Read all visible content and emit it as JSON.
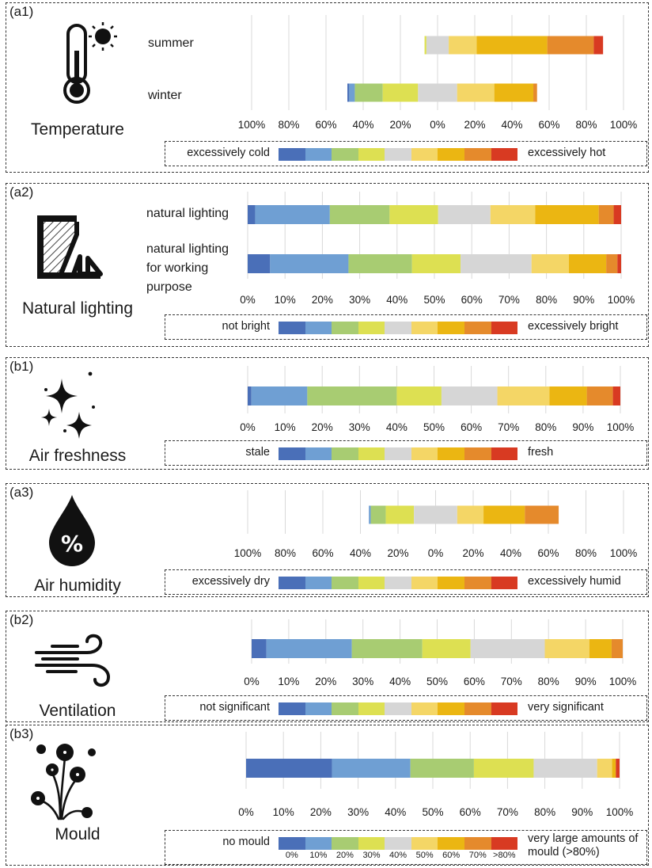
{
  "colors": [
    "#4a6fb8",
    "#6f9fd3",
    "#a8cc72",
    "#dde052",
    "#d6d6d6",
    "#f4d666",
    "#ebb612",
    "#e58a2c",
    "#d83a22"
  ],
  "scale_labels": [
    "0%",
    "10%",
    "20%",
    "30%",
    "40%",
    "50%",
    "60%",
    "70%",
    ">80%"
  ],
  "panels": [
    {
      "tag": "(a1)",
      "title": "Temperature",
      "icon": "thermometer-sun-icon",
      "legend": {
        "left": "excessively cold",
        "right": "excessively hot"
      },
      "rows": [
        {
          "label": "summer"
        },
        {
          "label": "winter"
        }
      ]
    },
    {
      "tag": "(a2)",
      "title": "Natural lighting",
      "icon": "window-light-icon",
      "legend": {
        "left": "not bright",
        "right": "excessively bright"
      },
      "rows": [
        {
          "label": "natural lighting"
        },
        {
          "label": "natural lighting for working purpose"
        }
      ]
    },
    {
      "tag": "(b1)",
      "title": "Air freshness",
      "icon": "sparkles-icon",
      "legend": {
        "left": "stale",
        "right": "fresh"
      }
    },
    {
      "tag": "(a3)",
      "title": "Air humidity",
      "icon": "humidity-drop-icon",
      "legend": {
        "left": "excessively dry",
        "right": "excessively humid"
      }
    },
    {
      "tag": "(b2)",
      "title": "Ventilation",
      "icon": "wind-icon",
      "legend": {
        "left": "not significant",
        "right": "very significant"
      }
    },
    {
      "tag": "(b3)",
      "title": "Mould",
      "icon": "mould-icon",
      "legend": {
        "left": "no mould",
        "right": "very large amounts of mould (>80%)"
      }
    }
  ],
  "chart_data": [
    {
      "type": "bar",
      "orientation": "horizontal",
      "stacked": "diverging",
      "categories": [
        "summer",
        "winter"
      ],
      "tick_labels": [
        "100%",
        "80%",
        "60%",
        "40%",
        "20%",
        "0%",
        "20%",
        "40%",
        "60%",
        "80%",
        "100%"
      ],
      "xlim": [
        -100,
        100
      ],
      "grid": true,
      "series": [
        {
          "name": "excessively cold",
          "values": [
            0,
            1
          ]
        },
        {
          "name": "",
          "values": [
            0,
            3
          ]
        },
        {
          "name": "",
          "values": [
            0,
            15
          ]
        },
        {
          "name": "",
          "values": [
            1,
            19
          ]
        },
        {
          "name": "",
          "values": [
            12,
            21
          ]
        },
        {
          "name": "",
          "values": [
            15,
            20
          ]
        },
        {
          "name": "",
          "values": [
            38,
            21
          ]
        },
        {
          "name": "",
          "values": [
            25,
            2
          ]
        },
        {
          "name": "excessively hot",
          "values": [
            5,
            0
          ]
        }
      ]
    },
    {
      "type": "bar",
      "orientation": "horizontal",
      "stacked": "100%",
      "categories": [
        "natural lighting",
        "natural lighting for working purpose"
      ],
      "tick_labels": [
        "0%",
        "10%",
        "20%",
        "30%",
        "40%",
        "50%",
        "60%",
        "70%",
        "80%",
        "90%",
        "100%"
      ],
      "xlim": [
        0,
        100
      ],
      "grid": true,
      "series": [
        {
          "name": "not bright",
          "values": [
            2,
            6
          ]
        },
        {
          "name": "",
          "values": [
            20,
            21
          ]
        },
        {
          "name": "",
          "values": [
            16,
            17
          ]
        },
        {
          "name": "",
          "values": [
            13,
            13
          ]
        },
        {
          "name": "",
          "values": [
            14,
            19
          ]
        },
        {
          "name": "",
          "values": [
            12,
            10
          ]
        },
        {
          "name": "",
          "values": [
            17,
            10
          ]
        },
        {
          "name": "",
          "values": [
            4,
            3
          ]
        },
        {
          "name": "excessively bright",
          "values": [
            2,
            1
          ]
        }
      ]
    },
    {
      "type": "bar",
      "orientation": "horizontal",
      "stacked": "100%",
      "categories": [
        "Air freshness"
      ],
      "tick_labels": [
        "0%",
        "10%",
        "20%",
        "30%",
        "40%",
        "50%",
        "60%",
        "70%",
        "80%",
        "90%",
        "100%"
      ],
      "xlim": [
        0,
        100
      ],
      "grid": true,
      "series": [
        {
          "name": "stale",
          "values": [
            1
          ]
        },
        {
          "name": "",
          "values": [
            15
          ]
        },
        {
          "name": "",
          "values": [
            24
          ]
        },
        {
          "name": "",
          "values": [
            12
          ]
        },
        {
          "name": "",
          "values": [
            15
          ]
        },
        {
          "name": "",
          "values": [
            14
          ]
        },
        {
          "name": "",
          "values": [
            10
          ]
        },
        {
          "name": "",
          "values": [
            7
          ]
        },
        {
          "name": "fresh",
          "values": [
            2
          ]
        }
      ]
    },
    {
      "type": "bar",
      "orientation": "horizontal",
      "stacked": "diverging",
      "categories": [
        "Air humidity"
      ],
      "tick_labels": [
        "100%",
        "80%",
        "60%",
        "40%",
        "20%",
        "0%",
        "20%",
        "40%",
        "60%",
        "80%",
        "100%"
      ],
      "xlim": [
        -100,
        100
      ],
      "grid": true,
      "series": [
        {
          "name": "excessively dry",
          "values": [
            0
          ]
        },
        {
          "name": "",
          "values": [
            1
          ]
        },
        {
          "name": "",
          "values": [
            8
          ]
        },
        {
          "name": "",
          "values": [
            15
          ]
        },
        {
          "name": "",
          "values": [
            23
          ]
        },
        {
          "name": "",
          "values": [
            14
          ]
        },
        {
          "name": "",
          "values": [
            22
          ]
        },
        {
          "name": "",
          "values": [
            18
          ]
        },
        {
          "name": "excessively humid",
          "values": [
            0
          ]
        }
      ]
    },
    {
      "type": "bar",
      "orientation": "horizontal",
      "stacked": "100%",
      "categories": [
        "Ventilation"
      ],
      "tick_labels": [
        "0%",
        "10%",
        "20%",
        "30%",
        "40%",
        "50%",
        "60%",
        "70%",
        "80%",
        "90%",
        "100%"
      ],
      "xlim": [
        0,
        100
      ],
      "grid": true,
      "series": [
        {
          "name": "not significant",
          "values": [
            4
          ]
        },
        {
          "name": "",
          "values": [
            23
          ]
        },
        {
          "name": "",
          "values": [
            19
          ]
        },
        {
          "name": "",
          "values": [
            13
          ]
        },
        {
          "name": "",
          "values": [
            20
          ]
        },
        {
          "name": "",
          "values": [
            12
          ]
        },
        {
          "name": "",
          "values": [
            6
          ]
        },
        {
          "name": "",
          "values": [
            3
          ]
        },
        {
          "name": "very significant",
          "values": [
            0
          ]
        }
      ]
    },
    {
      "type": "bar",
      "orientation": "horizontal",
      "stacked": "100%",
      "categories": [
        "Mould"
      ],
      "tick_labels": [
        "0%",
        "10%",
        "20%",
        "30%",
        "40%",
        "50%",
        "60%",
        "70%",
        "80%",
        "90%",
        "100%"
      ],
      "xlim": [
        0,
        100
      ],
      "grid": true,
      "series": [
        {
          "name": "no mould",
          "values": [
            23
          ]
        },
        {
          "name": "",
          "values": [
            21
          ]
        },
        {
          "name": "",
          "values": [
            17
          ]
        },
        {
          "name": "",
          "values": [
            16
          ]
        },
        {
          "name": "",
          "values": [
            17
          ]
        },
        {
          "name": "",
          "values": [
            4
          ]
        },
        {
          "name": "",
          "values": [
            1
          ]
        },
        {
          "name": "",
          "values": [
            0
          ]
        },
        {
          "name": "very large amounts of mould (>80%)",
          "values": [
            1
          ]
        }
      ]
    }
  ]
}
